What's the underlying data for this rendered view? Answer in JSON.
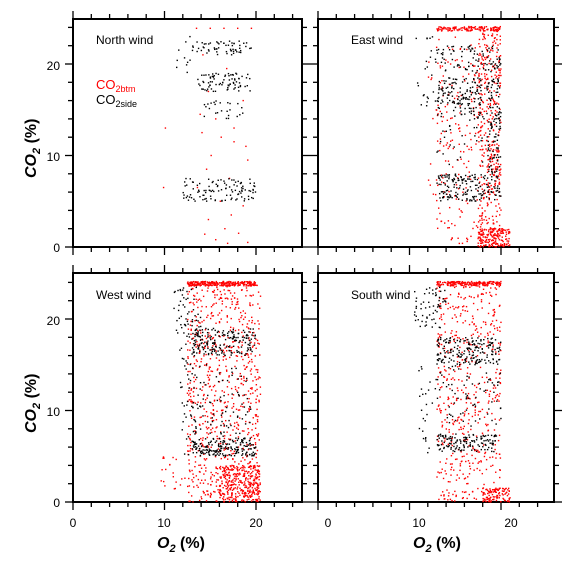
{
  "chart_data": {
    "type": "scatter",
    "x_axis": {
      "label_main": "O",
      "label_sub": "2",
      "label_unit": " (%)",
      "ticks": [
        "0",
        "10",
        "20"
      ],
      "xlim": [
        0,
        26
      ]
    },
    "y_axis": {
      "label_main": "CO",
      "label_sub": "2",
      "label_unit": " (%)",
      "ticks": [
        "0",
        "10",
        "20"
      ],
      "ylim": [
        0,
        25
      ]
    },
    "legend": {
      "placement": "top-left inside first panel",
      "entries": [
        {
          "main": "CO",
          "sub": "2btm",
          "color": "#ff0000"
        },
        {
          "main": "CO",
          "sub": "2side",
          "color": "#000000"
        }
      ]
    },
    "panels": [
      {
        "title": "North wind",
        "series": [
          {
            "color": "#ff0000",
            "points": [
              [
                13.5,
                23.9
              ],
              [
                15,
                23.9
              ],
              [
                16.5,
                23.9
              ],
              [
                18,
                23.9
              ],
              [
                19.5,
                23.9
              ],
              [
                14.2,
                21
              ],
              [
                16.8,
                19.5
              ],
              [
                14.8,
                17
              ],
              [
                18.6,
                16
              ],
              [
                15.6,
                14
              ],
              [
                14.1,
                12.5
              ],
              [
                17.6,
                11.5
              ],
              [
                15.1,
                10
              ],
              [
                19.1,
                9.5
              ],
              [
                14.6,
                8.5
              ],
              [
                17.1,
                7.5
              ],
              [
                13.6,
                6.5
              ],
              [
                16.1,
                5
              ],
              [
                18.6,
                4.5
              ],
              [
                14.8,
                3
              ],
              [
                16.6,
                2
              ],
              [
                18.1,
                1.5
              ],
              [
                15.6,
                0.8
              ],
              [
                19.1,
                0.5
              ],
              [
                10.1,
                13
              ],
              [
                9.9,
                6.5
              ],
              [
                17.6,
                13
              ],
              [
                13.9,
                14.5
              ],
              [
                16.2,
                12
              ],
              [
                18.9,
                11
              ],
              [
                17.3,
                3.5
              ],
              [
                14.4,
                1.4
              ],
              [
                16.9,
                0.4
              ]
            ]
          },
          {
            "color": "#000000",
            "clusters": [
              {
                "x": [
                  13,
                  19.5
                ],
                "y": [
                  21,
                  22.5
                ],
                "n": 60
              },
              {
                "x": [
                  13.5,
                  19.5
                ],
                "y": [
                  17,
                  19
                ],
                "n": 80
              },
              {
                "x": [
                  12,
                  20
                ],
                "y": [
                  5,
                  7.5
                ],
                "n": 110
              },
              {
                "x": [
                  14,
                  19
                ],
                "y": [
                  14,
                  16
                ],
                "n": 25
              },
              {
                "x": [
                  11,
                  13
                ],
                "y": [
                  19,
                  23
                ],
                "n": 10
              }
            ]
          }
        ]
      },
      {
        "title": "East wind",
        "series": [
          {
            "color": "#ff0000",
            "clusters": [
              {
                "x": [
                  13,
                  20
                ],
                "y": [
                  23.6,
                  24.1
                ],
                "n": 140
              },
              {
                "x": [
                  17.5,
                  20
                ],
                "y": [
                  0,
                  24
                ],
                "n": 420
              },
              {
                "x": [
                  13,
                  17.5
                ],
                "y": [
                  0,
                  23
                ],
                "n": 170
              },
              {
                "x": [
                  17.5,
                  21
                ],
                "y": [
                  0,
                  2
                ],
                "n": 140
              },
              {
                "x": [
                  12,
                  13
                ],
                "y": [
                  5,
                  22
                ],
                "n": 15
              }
            ]
          },
          {
            "color": "#000000",
            "clusters": [
              {
                "x": [
                  13,
                  20
                ],
                "y": [
                  19,
                  22
                ],
                "n": 90
              },
              {
                "x": [
                  13,
                  20
                ],
                "y": [
                  14,
                  18.5
                ],
                "n": 200
              },
              {
                "x": [
                  13,
                  20
                ],
                "y": [
                  5,
                  8
                ],
                "n": 170
              },
              {
                "x": [
                  18.5,
                  20
                ],
                "y": [
                  8,
                  14
                ],
                "n": 60
              },
              {
                "x": [
                  10.5,
                  13
                ],
                "y": [
                  15,
                  23
                ],
                "n": 25
              },
              {
                "x": [
                  13,
                  18
                ],
                "y": [
                  9,
                  14
                ],
                "n": 25
              }
            ]
          }
        ]
      },
      {
        "title": "West wind",
        "series": [
          {
            "color": "#ff0000",
            "clusters": [
              {
                "x": [
                  12.5,
                  20
                ],
                "y": [
                  23.6,
                  24.1
                ],
                "n": 260
              },
              {
                "x": [
                  12.5,
                  20.5
                ],
                "y": [
                  0,
                  24
                ],
                "n": 800
              },
              {
                "x": [
                  16,
                  20.5
                ],
                "y": [
                  0,
                  4
                ],
                "n": 300
              },
              {
                "x": [
                  9.5,
                  12.5
                ],
                "y": [
                  0,
                  5
                ],
                "n": 20
              }
            ]
          },
          {
            "color": "#000000",
            "clusters": [
              {
                "x": [
                  11,
                  14
                ],
                "y": [
                  18,
                  23.5
                ],
                "n": 60
              },
              {
                "x": [
                  13,
                  20
                ],
                "y": [
                  16,
                  19
                ],
                "n": 180
              },
              {
                "x": [
                  13,
                  20
                ],
                "y": [
                  5,
                  7
                ],
                "n": 180
              },
              {
                "x": [
                  12.5,
                  19.5
                ],
                "y": [
                  7,
                  15
                ],
                "n": 90
              },
              {
                "x": [
                  11.5,
                  13.5
                ],
                "y": [
                  5,
                  18
                ],
                "n": 40
              }
            ]
          }
        ]
      },
      {
        "title": "South wind",
        "series": [
          {
            "color": "#ff0000",
            "clusters": [
              {
                "x": [
                  13,
                  20
                ],
                "y": [
                  23.6,
                  24.1
                ],
                "n": 180
              },
              {
                "x": [
                  13,
                  20
                ],
                "y": [
                  0,
                  24
                ],
                "n": 520
              },
              {
                "x": [
                  18,
                  21
                ],
                "y": [
                  0,
                  1.5
                ],
                "n": 100
              }
            ]
          },
          {
            "color": "#000000",
            "clusters": [
              {
                "x": [
                  10.5,
                  14
                ],
                "y": [
                  19,
                  23.5
                ],
                "n": 60
              },
              {
                "x": [
                  13,
                  20
                ],
                "y": [
                  15,
                  18
                ],
                "n": 190
              },
              {
                "x": [
                  13,
                  19.5
                ],
                "y": [
                  5.5,
                  7.5
                ],
                "n": 140
              },
              {
                "x": [
                  13,
                  20
                ],
                "y": [
                  8,
                  15
                ],
                "n": 70
              },
              {
                "x": [
                  11,
                  13
                ],
                "y": [
                  5,
                  15
                ],
                "n": 25
              }
            ]
          }
        ]
      }
    ]
  }
}
